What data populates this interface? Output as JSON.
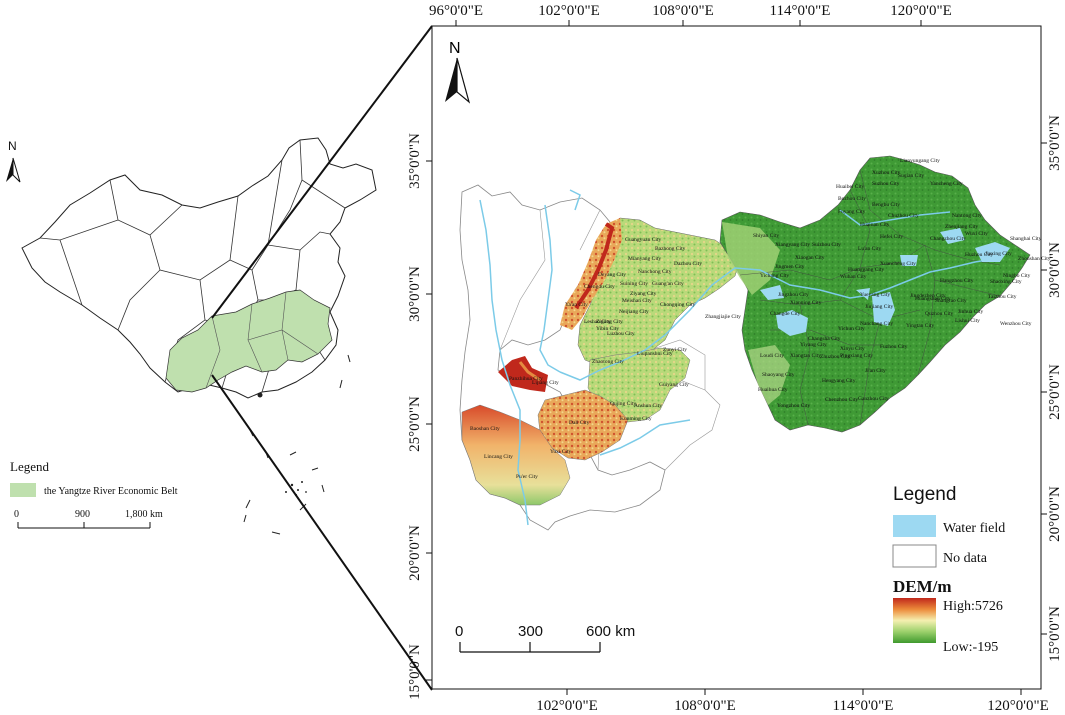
{
  "inset_map": {
    "north_label": "N",
    "legend_title": "Legend",
    "legend_item": "the Yangtze River Economic Belt",
    "belt_color": "#bfe0ae",
    "scale_labels": [
      "0",
      "900",
      "1,800 km"
    ]
  },
  "main_map": {
    "north_label": "N",
    "top_ticks": [
      "96°0'0\"E",
      "102°0'0\"E",
      "108°0'0\"E",
      "114°0'0\"E",
      "120°0'0\"E"
    ],
    "bottom_ticks": [
      "102°0'0\"E",
      "108°0'0\"E",
      "114°0'0\"E",
      "120°0'0\"E"
    ],
    "left_ticks": [
      "35°0'0\"N",
      "30°0'0\"N",
      "25°0'0\"N",
      "20°0'0\"N",
      "15°0'0\"N"
    ],
    "right_ticks": [
      "35°0'0\"N",
      "30°0'0\"N",
      "25°0'0\"N",
      "20°0'0\"N",
      "15°0'0\"N"
    ],
    "scale_labels": [
      "0",
      "300",
      "600 km"
    ],
    "legend": {
      "title": "Legend",
      "water_label": "Water field",
      "nodata_label": "No data",
      "dem_title": "DEM/m",
      "high_label": "High:5726",
      "low_label": "Low:-195",
      "water_color": "#9dd9f2",
      "high_color": "#c0281c",
      "mid_color": "#f5f0b0",
      "low_color": "#3f9a2e"
    },
    "cities": [
      "Lianyungang City",
      "Xuzhou City",
      "Suqian City",
      "Yancheng City",
      "Huaibei City",
      "Suzhou City",
      "Bozhou City",
      "Bengbu City",
      "Fuyang City",
      "Chuzhou City",
      "Nantong City",
      "Huainan City",
      "Lu'an City",
      "Hefei City",
      "Zhenjiang City",
      "Changzhou City",
      "Wuxi City",
      "Shanghai City",
      "Huzhou City",
      "Jiaxing City",
      "Zhoushan City",
      "Hangzhou City",
      "Shaoxing City",
      "Ningbo City",
      "Xuancheng City",
      "Huangshan City",
      "Jinhua City",
      "Taizhou City",
      "Quzhou City",
      "Lishui City",
      "Wenzhou City",
      "Shiyan City",
      "Xiangyang City",
      "Suizhou City",
      "Xiaogan City",
      "Jingmen City",
      "Huanggang City",
      "Wuhan City",
      "Jingzhou City",
      "Jiujiang City",
      "Yichang City",
      "Xianning City",
      "Yueyang City",
      "Changde City",
      "Nanchang City",
      "Yichun City",
      "Yingtan City",
      "Shangrao City",
      "Jingdezhen City",
      "Fuzhou City",
      "Changsha City",
      "Xiangtan City",
      "Zhuzhou City",
      "Yiyang City",
      "Loudi City",
      "Shaoyang City",
      "Hengyang City",
      "Ji'an City",
      "Xinyu City",
      "Pingxiang City",
      "Huaihua City",
      "Yongzhou City",
      "Chenzhou City",
      "Ganzhou City",
      "Zhangjiajie City",
      "Guangyuan City",
      "Bazhong City",
      "Dazhou City",
      "Mianyang City",
      "Deyang City",
      "Nanchong City",
      "Chengdu City",
      "Suining City",
      "Guang'an City",
      "Ziyang City",
      "Ya'an City",
      "Meishan City",
      "Leshan City",
      "Neijiang City",
      "Chongqing City",
      "Zigong City",
      "Yibin City",
      "Luzhou City",
      "Zunyi City",
      "Zhaotong City",
      "Guiyang City",
      "Liupanshui City",
      "Anshun City",
      "Qujing City",
      "Kunming City",
      "Dali City",
      "Lijiang City",
      "Panzhihua City",
      "Baoshan City",
      "Lincang City",
      "Yuxi City",
      "Pu'er City"
    ]
  }
}
